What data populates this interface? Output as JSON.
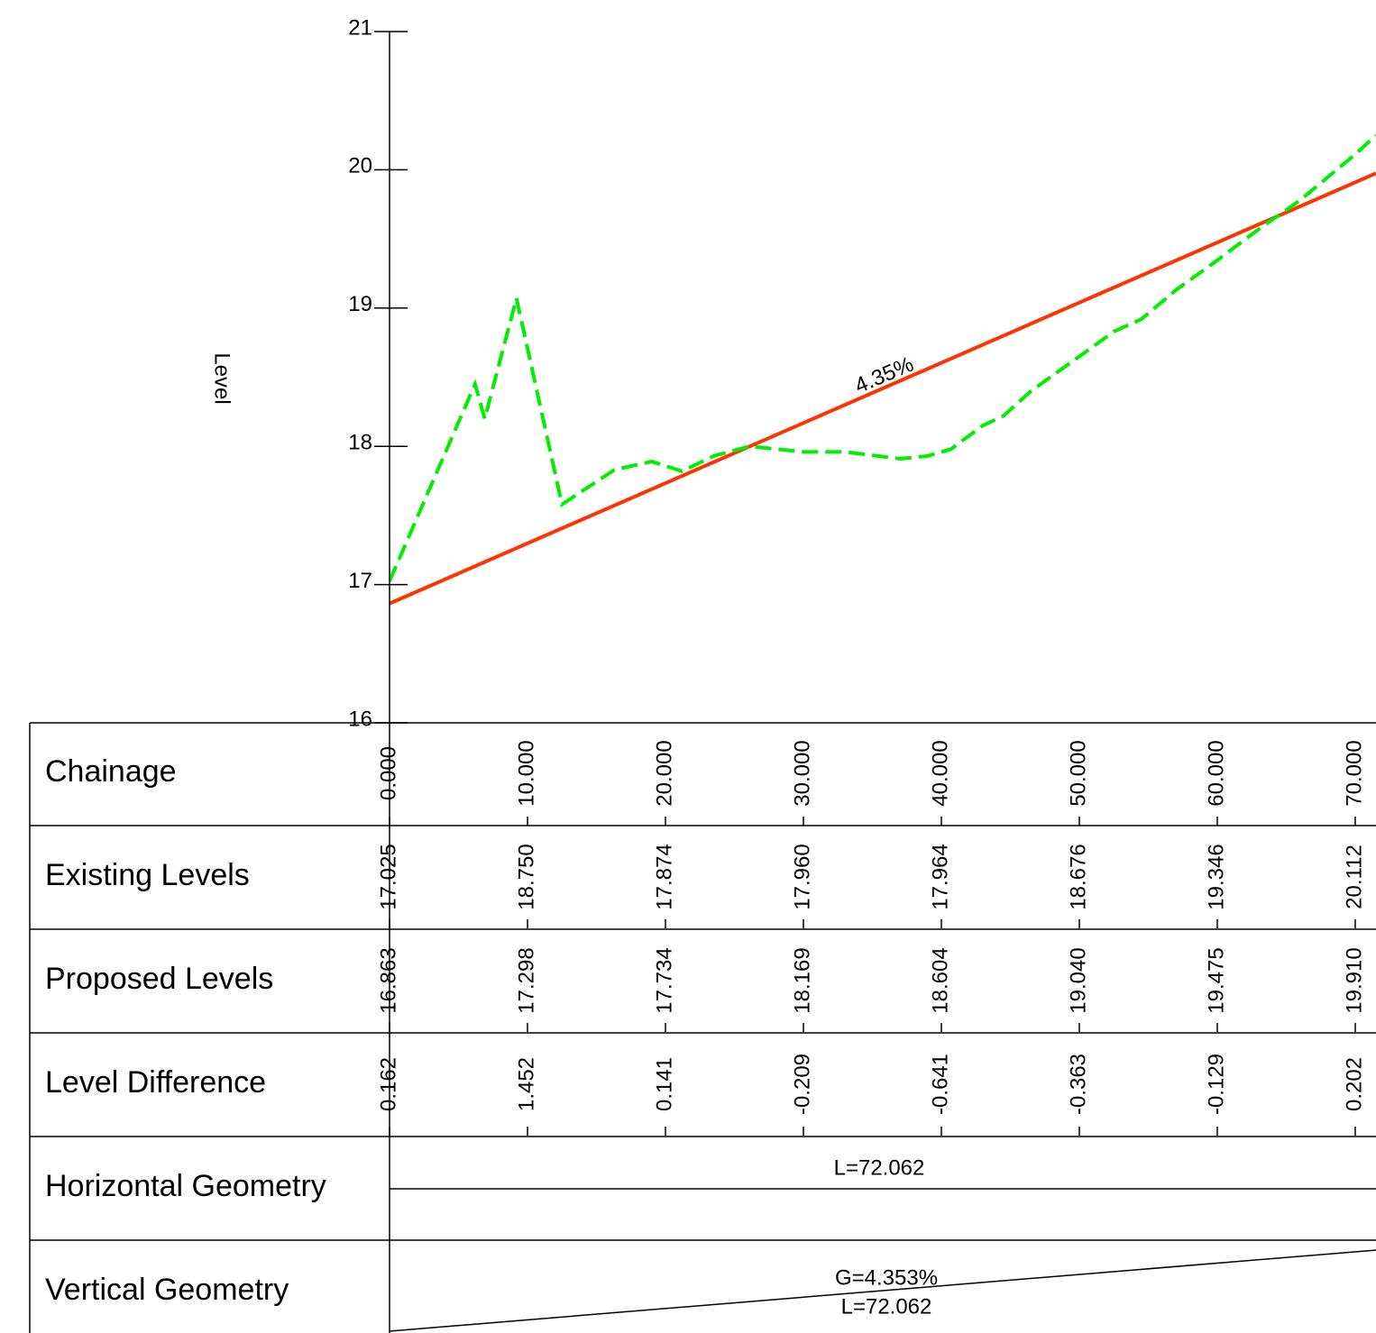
{
  "chart_data": {
    "type": "line",
    "ylabel": "Level",
    "xlabel": "Chainage",
    "annotation": "4.35%",
    "xlim": [
      0,
      71.5
    ],
    "ylim": [
      16,
      21
    ],
    "yticks": [
      16,
      17,
      18,
      19,
      20,
      21
    ],
    "xticks": [
      {
        "value": 0,
        "label": "0.000"
      },
      {
        "value": 10,
        "label": "10.000"
      },
      {
        "value": 20,
        "label": "20.000"
      },
      {
        "value": 30,
        "label": "30.000"
      },
      {
        "value": 40,
        "label": "40.000"
      },
      {
        "value": 50,
        "label": "50.000"
      },
      {
        "value": 60,
        "label": "60.000"
      },
      {
        "value": 70,
        "label": "70.000"
      }
    ],
    "series": [
      {
        "name": "Existing Levels",
        "color": "#00ee00",
        "dashed": true,
        "x": [
          0,
          6.2,
          6.9,
          9.2,
          12.5,
          16.3,
          19,
          21.2,
          23.5,
          26.1,
          30,
          33,
          37,
          39,
          40.7,
          43,
          44.5,
          46.5,
          50,
          52.5,
          54.5,
          57,
          60,
          63,
          66,
          70,
          71.5
        ],
        "values": [
          17.025,
          18.45,
          18.2,
          19.07,
          17.58,
          17.83,
          17.89,
          17.82,
          17.93,
          18.0,
          17.96,
          17.96,
          17.91,
          17.93,
          17.98,
          18.15,
          18.22,
          18.4,
          18.65,
          18.83,
          18.92,
          19.13,
          19.346,
          19.57,
          19.78,
          20.112,
          20.25
        ]
      },
      {
        "name": "Proposed Levels",
        "color": "#ff3300",
        "dashed": false,
        "x": [
          0,
          71.5
        ],
        "values": [
          16.863,
          19.975
        ]
      }
    ]
  },
  "table": {
    "rows": [
      {
        "label": "Existing Levels",
        "values": [
          "17.025",
          "18.750",
          "17.874",
          "17.960",
          "17.964",
          "18.676",
          "19.346",
          "20.112"
        ]
      },
      {
        "label": "Proposed Levels",
        "values": [
          "16.863",
          "17.298",
          "17.734",
          "18.169",
          "18.604",
          "19.040",
          "19.475",
          "19.910"
        ]
      },
      {
        "label": "Level Difference",
        "values": [
          "0.162",
          "1.452",
          "0.141",
          "-0.209",
          "-0.641",
          "-0.363",
          "-0.129",
          "0.202"
        ]
      }
    ],
    "horizontal_geometry": {
      "label": "Horizontal Geometry",
      "length": "L=72.062"
    },
    "vertical_geometry": {
      "label": "Vertical Geometry",
      "grade": "G=4.353%",
      "length": "L=72.062"
    }
  }
}
